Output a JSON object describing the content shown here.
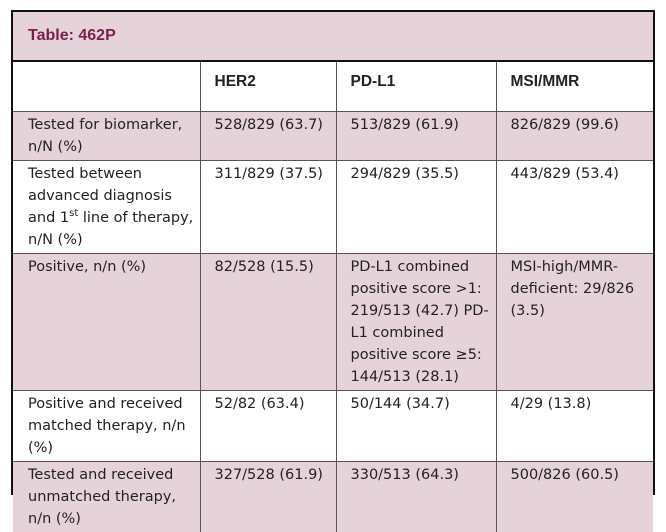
{
  "title": "Table: 462P",
  "headers": [
    "",
    "HER2",
    "PD-L1",
    "MSI/MMR"
  ],
  "rows": [
    {
      "label": "Tested for biomarker, n/N (%)",
      "her2": "528/829 (63.7)",
      "pdl1": "513/829 (61.9)",
      "msi": "826/829 (99.6)"
    },
    {
      "label_pre": "Tested between advanced diagnosis and 1",
      "label_sup": "st",
      "label_post": " line of therapy, n/N (%)",
      "her2": "311/829 (37.5)",
      "pdl1": "294/829 (35.5)",
      "msi": "443/829 (53.4)"
    },
    {
      "label": "Positive, n/n (%)",
      "her2": "82/528 (15.5)",
      "pdl1": "PD-L1 combined positive score >1: 219/513 (42.7) PD-L1 combined positive score ≥5: 144/513 (28.1)",
      "msi": "MSI-high/MMR-deficient: 29/826 (3.5)"
    },
    {
      "label": "Positive and received matched therapy, n/n (%)",
      "her2": "52/82 (63.4)",
      "pdl1": "50/144 (34.7)",
      "msi": "4/29 (13.8)"
    },
    {
      "label": "Tested and received unmatched therapy, n/n (%)",
      "her2": "327/528 (61.9)",
      "pdl1": "330/513 (64.3)",
      "msi": "500/826 (60.5)"
    }
  ]
}
